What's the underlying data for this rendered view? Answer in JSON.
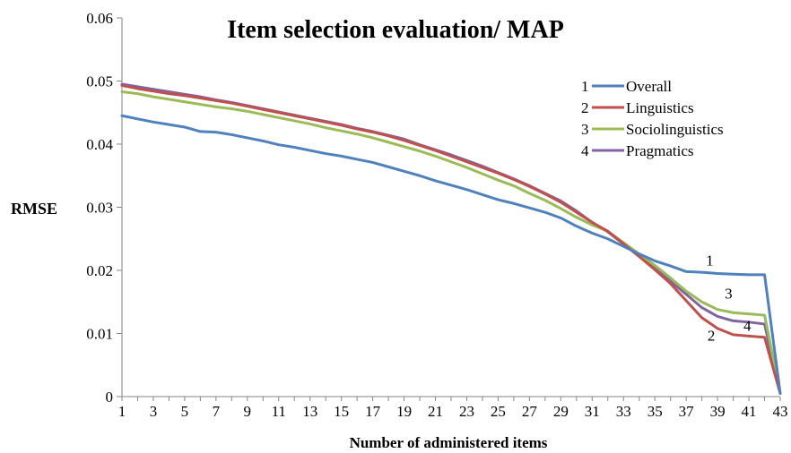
{
  "chart_data": {
    "type": "line",
    "title": "Item selection evaluation/ MAP",
    "xlabel": "Number of administered items",
    "ylabel": "RMSE",
    "x": [
      1,
      2,
      3,
      4,
      5,
      6,
      7,
      8,
      9,
      10,
      11,
      12,
      13,
      14,
      15,
      16,
      17,
      18,
      19,
      20,
      21,
      22,
      23,
      24,
      25,
      26,
      27,
      28,
      29,
      30,
      31,
      32,
      33,
      34,
      35,
      36,
      37,
      38,
      39,
      40,
      41,
      42,
      43
    ],
    "x_tick_labels": [
      "1",
      "3",
      "5",
      "7",
      "9",
      "11",
      "13",
      "15",
      "17",
      "19",
      "21",
      "23",
      "25",
      "27",
      "29",
      "31",
      "33",
      "35",
      "37",
      "39",
      "41",
      "43"
    ],
    "y_tick_labels": [
      "0",
      "0.01",
      "0.02",
      "0.03",
      "0.04",
      "0.05",
      "0.06"
    ],
    "ylim": [
      0,
      0.06
    ],
    "xlim": [
      1,
      43
    ],
    "grid": false,
    "legend_position": "top-right",
    "series": [
      {
        "name": "Overall",
        "number": "1",
        "color": "#4f81bd",
        "values": [
          0.0445,
          0.044,
          0.0435,
          0.0431,
          0.0427,
          0.042,
          0.0419,
          0.0415,
          0.041,
          0.0405,
          0.0399,
          0.0395,
          0.039,
          0.0385,
          0.0381,
          0.0376,
          0.0371,
          0.0364,
          0.0357,
          0.035,
          0.0342,
          0.0335,
          0.0328,
          0.032,
          0.0312,
          0.0306,
          0.0299,
          0.0292,
          0.0283,
          0.027,
          0.0259,
          0.025,
          0.0238,
          0.0226,
          0.0215,
          0.0207,
          0.0198,
          0.0197,
          0.0195,
          0.0194,
          0.0193,
          0.0193,
          0.0005
        ]
      },
      {
        "name": "Linguistics",
        "number": "2",
        "color": "#c0504d",
        "values": [
          0.0493,
          0.0488,
          0.0484,
          0.048,
          0.0477,
          0.0473,
          0.0469,
          0.0465,
          0.046,
          0.0455,
          0.045,
          0.0445,
          0.044,
          0.0435,
          0.043,
          0.0424,
          0.0419,
          0.0413,
          0.0406,
          0.0398,
          0.039,
          0.0381,
          0.0372,
          0.0363,
          0.0354,
          0.0344,
          0.0333,
          0.0321,
          0.0308,
          0.0292,
          0.0276,
          0.0262,
          0.0242,
          0.0222,
          0.0201,
          0.0179,
          0.0152,
          0.0125,
          0.0108,
          0.0098,
          0.0096,
          0.0094,
          0.0005
        ]
      },
      {
        "name": "Sociolinguistics",
        "number": "3",
        "color": "#9bbb59",
        "values": [
          0.0483,
          0.048,
          0.0475,
          0.0471,
          0.0467,
          0.0463,
          0.0459,
          0.0456,
          0.0452,
          0.0447,
          0.0442,
          0.0437,
          0.0432,
          0.0426,
          0.0421,
          0.0416,
          0.041,
          0.0403,
          0.0396,
          0.0389,
          0.0381,
          0.0372,
          0.0363,
          0.0353,
          0.0343,
          0.0334,
          0.0322,
          0.0311,
          0.0298,
          0.0284,
          0.0272,
          0.0262,
          0.0244,
          0.0226,
          0.0208,
          0.0188,
          0.0167,
          0.015,
          0.0138,
          0.0133,
          0.0131,
          0.0129,
          0.0005
        ]
      },
      {
        "name": "Pragmatics",
        "number": "4",
        "color": "#8064a2",
        "values": [
          0.0495,
          0.0491,
          0.0487,
          0.0483,
          0.0479,
          0.0475,
          0.047,
          0.0466,
          0.0461,
          0.0456,
          0.0451,
          0.0446,
          0.0441,
          0.0436,
          0.0431,
          0.0425,
          0.042,
          0.0414,
          0.0408,
          0.0399,
          0.0391,
          0.0383,
          0.0374,
          0.0365,
          0.0355,
          0.0345,
          0.0334,
          0.0322,
          0.031,
          0.0294,
          0.0276,
          0.0261,
          0.0242,
          0.0222,
          0.0203,
          0.0183,
          0.0162,
          0.0141,
          0.0127,
          0.012,
          0.0118,
          0.0115,
          0.0005
        ]
      }
    ],
    "annotations": [
      {
        "text": "1",
        "x": 38.5,
        "y": 0.0208
      },
      {
        "text": "3",
        "x": 39.7,
        "y": 0.0155
      },
      {
        "text": "4",
        "x": 40.9,
        "y": 0.0104
      },
      {
        "text": "2",
        "x": 38.6,
        "y": 0.0089
      }
    ]
  }
}
